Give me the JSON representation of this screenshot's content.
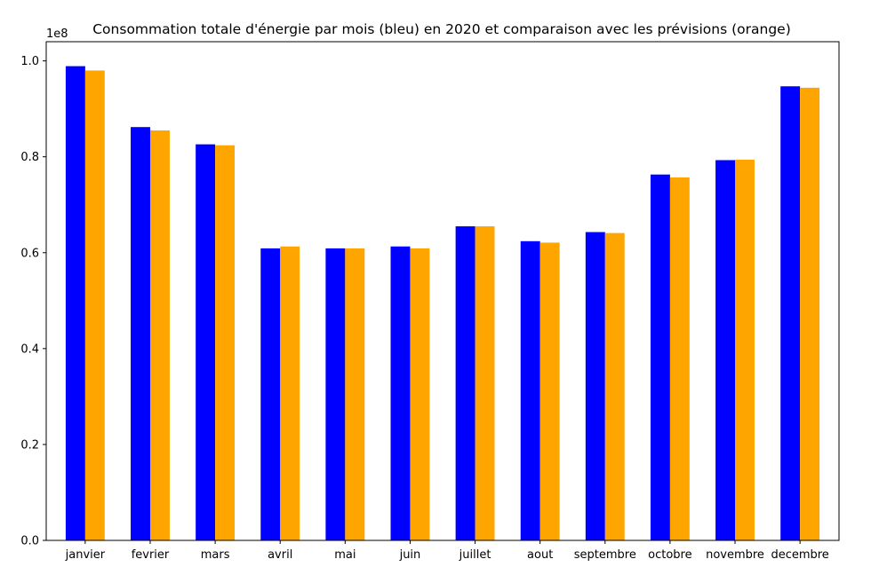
{
  "chart_data": {
    "type": "bar",
    "title": "Consommation totale d'énergie par mois (bleu) en 2020 et comparaison avec les prévisions (orange)",
    "xlabel": "",
    "ylabel": "",
    "y_offset_label": "1e8",
    "ylim": [
      0,
      104000000
    ],
    "yticks": [
      0,
      20000000,
      40000000,
      60000000,
      80000000,
      100000000
    ],
    "ytick_labels": [
      "0.0",
      "0.2",
      "0.4",
      "0.6",
      "0.8",
      "1.0"
    ],
    "categories": [
      "janvier",
      "fevrier",
      "mars",
      "avril",
      "mai",
      "juin",
      "juillet",
      "aout",
      "septembre",
      "octobre",
      "novembre",
      "decembre"
    ],
    "series": [
      {
        "color": "#0000ff",
        "values": [
          98900000,
          86200000,
          82600000,
          60900000,
          60900000,
          61300000,
          65500000,
          62400000,
          64300000,
          76300000,
          79300000,
          94700000
        ]
      },
      {
        "color": "#ffa500",
        "values": [
          98000000,
          85500000,
          82400000,
          61300000,
          60900000,
          60900000,
          65500000,
          62100000,
          64100000,
          75700000,
          79400000,
          94400000
        ]
      }
    ],
    "grid": false,
    "legend": "none"
  }
}
